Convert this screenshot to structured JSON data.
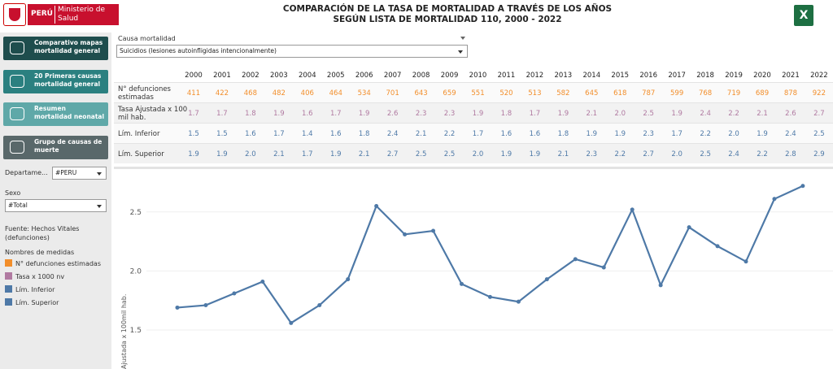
{
  "header": {
    "logo_country": "PERÚ",
    "logo_org": "Ministerio de Salud",
    "title": [
      "COMPARACIÓN DE LA TASA DE MORTALIDAD A TRAVÉS DE LOS AÑOS",
      "SEGÚN LISTA DE MORTALIDAD 110, 2000 - 2022"
    ]
  },
  "sidebar": {
    "buttons": [
      "Comparativo mapas mortalidad general",
      "20 Primeras causas mortalidad general",
      "Resumen mortalidad neonatal",
      "Grupo de causas de muerte"
    ],
    "filters": [
      {
        "label": "Departame...",
        "value": "#PERU"
      },
      {
        "label": "Sexo",
        "value": "#Total"
      }
    ],
    "source": "Fuente: Hechos Vitales (defunciones)",
    "legend_title": "Nombres de medidas",
    "legend": [
      {
        "name": "N° defunciones estimadas",
        "color": "#f28e2b"
      },
      {
        "name": "Tasa x 1000 nv",
        "color": "#b07aa1"
      },
      {
        "name": "Lím. Inferior",
        "color": "#4e79a7"
      },
      {
        "name": "Lím. Superior",
        "color": "#4e79a7"
      }
    ]
  },
  "cause_filter": {
    "label": "Causa mortalidad",
    "value": "Suicidios (lesiones autoinfligidas intencionalmente)"
  },
  "table": {
    "years": [
      "2000",
      "2001",
      "2002",
      "2003",
      "2004",
      "2005",
      "2006",
      "2007",
      "2008",
      "2009",
      "2010",
      "2011",
      "2012",
      "2013",
      "2014",
      "2015",
      "2016",
      "2017",
      "2018",
      "2019",
      "2020",
      "2021",
      "2022"
    ],
    "rows": [
      {
        "label": "N° defunciones estimadas",
        "color": "#f28e2b",
        "cells": [
          "411",
          "422",
          "468",
          "482",
          "406",
          "464",
          "534",
          "701",
          "643",
          "659",
          "551",
          "520",
          "513",
          "582",
          "645",
          "618",
          "787",
          "599",
          "768",
          "719",
          "689",
          "878",
          "922"
        ]
      },
      {
        "label": "Tasa Ajustada x 100 mil hab.",
        "color": "#b07aa1",
        "cells": [
          "1.7",
          "1.7",
          "1.8",
          "1.9",
          "1.6",
          "1.7",
          "1.9",
          "2.6",
          "2.3",
          "2.3",
          "1.9",
          "1.8",
          "1.7",
          "1.9",
          "2.1",
          "2.0",
          "2.5",
          "1.9",
          "2.4",
          "2.2",
          "2.1",
          "2.6",
          "2.7"
        ]
      },
      {
        "label": "Lím. Inferior",
        "color": "#4e79a7",
        "cells": [
          "1.5",
          "1.5",
          "1.6",
          "1.7",
          "1.4",
          "1.6",
          "1.8",
          "2.4",
          "2.1",
          "2.2",
          "1.7",
          "1.6",
          "1.6",
          "1.8",
          "1.9",
          "1.9",
          "2.3",
          "1.7",
          "2.2",
          "2.0",
          "1.9",
          "2.4",
          "2.5"
        ]
      },
      {
        "label": "Lím. Superior",
        "color": "#4e79a7",
        "cells": [
          "1.9",
          "1.9",
          "2.0",
          "2.1",
          "1.7",
          "1.9",
          "2.1",
          "2.7",
          "2.5",
          "2.5",
          "2.0",
          "1.9",
          "1.9",
          "2.1",
          "2.3",
          "2.2",
          "2.7",
          "2.0",
          "2.5",
          "2.4",
          "2.2",
          "2.8",
          "2.9"
        ]
      }
    ]
  },
  "chart_data": {
    "type": "line",
    "ylabel": "Ajustada x 100mil hab.",
    "ylim": [
      1.17,
      2.87
    ],
    "yticks": [
      1.5,
      {
        "value": 2,
        "label": "2.0"
      },
      2.5
    ],
    "grid": true,
    "series": [
      {
        "color": "#4e79a7",
        "values": [
          1.69,
          1.71,
          1.81,
          1.91,
          1.56,
          1.71,
          1.93,
          2.55,
          2.31,
          2.34,
          1.89,
          1.78,
          1.74,
          1.93,
          2.1,
          2.03,
          2.52,
          1.88,
          2.37,
          2.21,
          2.08,
          2.61,
          2.72
        ]
      }
    ]
  }
}
